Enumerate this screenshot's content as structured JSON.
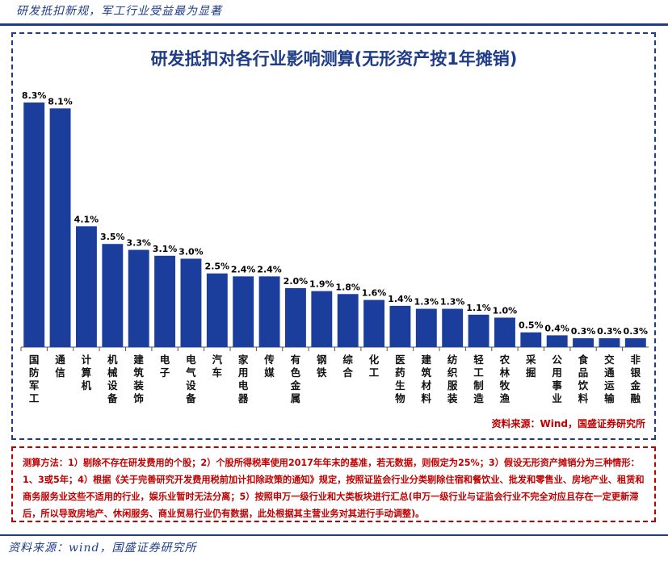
{
  "header": {
    "caption": "研发抵扣新规，军工行业受益最为显著"
  },
  "chart_data": {
    "type": "bar",
    "title": "研发抵扣对各行业影响测算(无形资产按1年摊销)",
    "categories": [
      "国防军工",
      "通信",
      "计算机",
      "机械设备",
      "建筑装饰",
      "电子",
      "电气设备",
      "汽车",
      "家用电器",
      "传媒",
      "有色金属",
      "钢铁",
      "综合",
      "化工",
      "医药生物",
      "建筑材料",
      "纺织服装",
      "轻工制造",
      "农林牧渔",
      "采掘",
      "公用事业",
      "食品饮料",
      "交通运输",
      "非银金融"
    ],
    "values": [
      8.3,
      8.1,
      4.1,
      3.5,
      3.3,
      3.1,
      3.0,
      2.5,
      2.4,
      2.4,
      2.0,
      1.9,
      1.8,
      1.6,
      1.4,
      1.3,
      1.3,
      1.1,
      1.0,
      0.5,
      0.4,
      0.3,
      0.3,
      0.3
    ],
    "value_labels": [
      "8.3%",
      "8.1%",
      "4.1%",
      "3.5%",
      "3.3%",
      "3.1%",
      "3.0%",
      "2.5%",
      "2.4%",
      "2.4%",
      "2.0%",
      "1.9%",
      "1.8%",
      "1.6%",
      "1.4%",
      "1.3%",
      "1.3%",
      "1.1%",
      "1.0%",
      "0.5%",
      "0.4%",
      "0.3%",
      "0.3%",
      "0.3%"
    ],
    "xlabel": "",
    "ylabel": "",
    "ylim": [
      0,
      8.3
    ],
    "grid": false,
    "bar_color": "#1b3d9c"
  },
  "source_inner": "资料来源：Wind，国盛证券研究所",
  "note": "测算方法：1）剔除不存在研发费用的个股；2）个股所得税率使用2017年年末的基准，若无数据，则假定为25%；3）假设无形资产摊销分为三种情形：1、3或5年；4）根据《关于完善研究开发费用税前加计扣除政策的通知》规定，按照证监会行业分类剔除住宿和餐饮业、批发和零售业、房地产业、租赁和商务服务业这些不适用的行业，娱乐业暂时无法分离；5）按照申万一级行业和大类板块进行汇总(申万一级行业与证监会行业不完全对应且存在一定更新滞后，所以导致房地产、休闲服务、商业贸易行业仍有数据，此处根据其主营业务对其进行手动调整)。",
  "footer": {
    "caption": "资料来源：wind，国盛证券研究所"
  }
}
